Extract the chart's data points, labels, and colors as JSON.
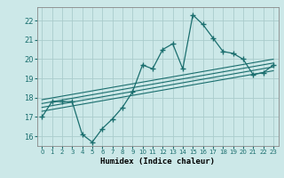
{
  "xlabel": "Humidex (Indice chaleur)",
  "bg_color": "#cce8e8",
  "grid_color": "#aacccc",
  "line_color": "#1a6e6e",
  "main_x": [
    0,
    1,
    2,
    3,
    4,
    5,
    6,
    7,
    8,
    9,
    10,
    11,
    12,
    13,
    14,
    15,
    16,
    17,
    18,
    19,
    20,
    21,
    22,
    23
  ],
  "main_y": [
    17.0,
    17.8,
    17.8,
    17.8,
    16.1,
    15.7,
    16.4,
    16.9,
    17.5,
    18.3,
    19.7,
    19.5,
    20.5,
    20.8,
    19.5,
    22.3,
    21.8,
    21.1,
    20.4,
    20.3,
    20.0,
    19.2,
    19.3,
    19.7
  ],
  "regression_lines": [
    {
      "x0": 0,
      "y0": 17.3,
      "x1": 23,
      "y1": 19.4
    },
    {
      "x0": 0,
      "y0": 17.5,
      "x1": 23,
      "y1": 19.6
    },
    {
      "x0": 0,
      "y0": 17.7,
      "x1": 23,
      "y1": 19.8
    },
    {
      "x0": 0,
      "y0": 17.9,
      "x1": 23,
      "y1": 20.0
    }
  ],
  "ylim": [
    15.5,
    22.7
  ],
  "xlim": [
    -0.5,
    23.5
  ],
  "yticks": [
    16,
    17,
    18,
    19,
    20,
    21,
    22
  ],
  "xticks": [
    0,
    1,
    2,
    3,
    4,
    5,
    6,
    7,
    8,
    9,
    10,
    11,
    12,
    13,
    14,
    15,
    16,
    17,
    18,
    19,
    20,
    21,
    22,
    23
  ]
}
